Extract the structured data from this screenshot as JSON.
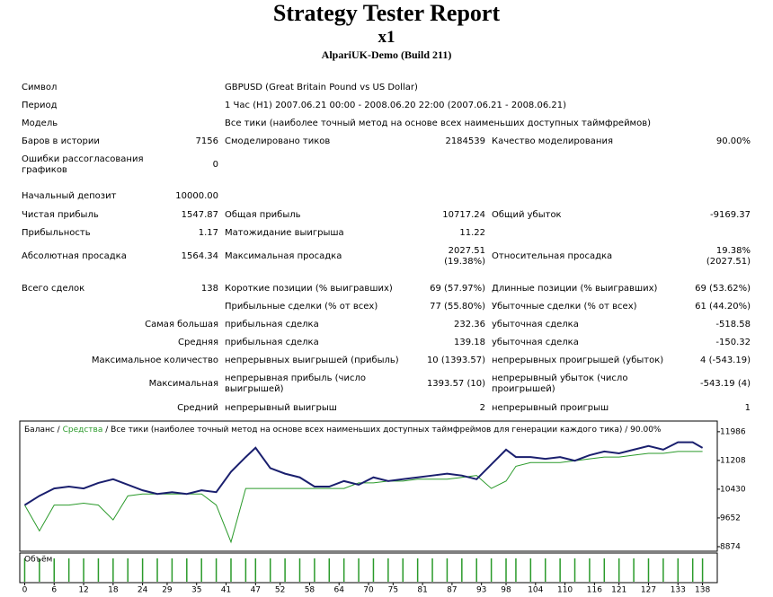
{
  "header": {
    "title": "Strategy Tester Report",
    "subtitle": "x1",
    "server": "AlpariUK-Demo (Build 211)"
  },
  "table": {
    "rows": [
      [
        "Символ",
        null,
        "GBPUSD (Great Britain Pound vs US Dollar)",
        null,
        null,
        null
      ],
      [
        "Период",
        null,
        "1 Час (H1) 2007.06.21 00:00 - 2008.06.20 22:00 (2007.06.21 - 2008.06.21)",
        null,
        null,
        null
      ],
      [
        "Модель",
        null,
        "Все тики (наиболее точный метод на основе всех наименьших доступных таймфреймов)",
        null,
        null,
        null
      ],
      [
        "Баров в истории",
        "7156",
        "Смоделировано тиков",
        "2184539",
        "Качество моделирования",
        "90.00%"
      ],
      [
        "Ошибки рассогласования графиков",
        "0",
        null,
        null,
        null,
        null
      ],
      [
        "Начальный депозит",
        "10000.00",
        null,
        null,
        null,
        null
      ],
      [
        "Чистая прибыль",
        "1547.87",
        "Общая прибыль",
        "10717.24",
        "Общий убыток",
        "-9169.37"
      ],
      [
        "Прибыльность",
        "1.17",
        "Матожидание выигрыша",
        "11.22",
        null,
        null
      ],
      [
        "Абсолютная просадка",
        "1564.34",
        "Максимальная просадка",
        "2027.51\n(19.38%)",
        "Относительная просадка",
        "19.38%\n(2027.51)"
      ],
      [
        "Всего сделок",
        "138",
        "Короткие позиции (% выигравших)",
        "69 (57.97%)",
        "Длинные позиции (% выигравших)",
        "69 (53.62%)"
      ],
      [
        null,
        null,
        "Прибыльные сделки (% от всех)",
        "77 (55.80%)",
        "Убыточные сделки (% от всех)",
        "61 (44.20%)"
      ],
      [
        null,
        "Самая большая",
        "прибыльная сделка",
        "232.36",
        "убыточная сделка",
        "-518.58"
      ],
      [
        null,
        "Средняя",
        "прибыльная сделка",
        "139.18",
        "убыточная сделка",
        "-150.32"
      ],
      [
        null,
        "Максимальное количество",
        "непрерывных выигрышей (прибыль)",
        "10 (1393.57)",
        "непрерывных проигрышей (убыток)",
        "4 (-543.19)"
      ],
      [
        null,
        "Максимальная",
        "непрерывная прибыль (число выигрышей)",
        "1393.57 (10)",
        "непрерывный убыток (число проигрышей)",
        "-543.19 (4)"
      ],
      [
        null,
        "Средний",
        "непрерывный выигрыш",
        "2",
        "непрерывный проигрыш",
        "1"
      ]
    ]
  },
  "chart_data": {
    "type": "line",
    "legend_separator": "/",
    "subtitle": "/ Все тики (наиболее точный метод на основе всех наименьших доступных таймфреймов для генерации каждого тика) / 90.00%",
    "x": [
      0,
      3,
      6,
      9,
      12,
      15,
      18,
      21,
      24,
      27,
      30,
      33,
      36,
      39,
      42,
      45,
      47,
      50,
      53,
      56,
      59,
      62,
      65,
      68,
      71,
      74,
      77,
      80,
      83,
      86,
      89,
      92,
      95,
      98,
      100,
      103,
      106,
      109,
      112,
      115,
      118,
      121,
      124,
      127,
      130,
      133,
      136,
      138
    ],
    "series": [
      {
        "name": "Баланс",
        "color": "#1a1f6e",
        "values": [
          10000,
          10250,
          10450,
          10500,
          10450,
          10600,
          10700,
          10550,
          10400,
          10300,
          10350,
          10300,
          10400,
          10350,
          10900,
          11300,
          11550,
          11000,
          10850,
          10750,
          10500,
          10500,
          10650,
          10550,
          10750,
          10650,
          10700,
          10750,
          10800,
          10850,
          10800,
          10700,
          11100,
          11500,
          11300,
          11300,
          11250,
          11300,
          11200,
          11350,
          11450,
          11400,
          11500,
          11600,
          11500,
          11700,
          11700,
          11547.87
        ]
      },
      {
        "name": "Средства",
        "color": "#2a9a2a",
        "values": [
          10000,
          9300,
          10000,
          10000,
          10050,
          10000,
          9600,
          10250,
          10300,
          10300,
          10300,
          10300,
          10300,
          10000,
          9000,
          10450,
          10450,
          10450,
          10450,
          10450,
          10450,
          10450,
          10450,
          10600,
          10600,
          10650,
          10650,
          10700,
          10700,
          10700,
          10750,
          10800,
          10450,
          10650,
          11050,
          11150,
          11150,
          11150,
          11200,
          11250,
          11300,
          11300,
          11350,
          11400,
          11400,
          11450,
          11450,
          11450
        ]
      }
    ],
    "volume": {
      "name": "Объём",
      "color": "#2a9a2a",
      "values": [
        0.1,
        0.1,
        0.1,
        0.1,
        0.1,
        0.1,
        0.1,
        0.1,
        0.1,
        0.1,
        0.1,
        0.1,
        0.1,
        0.1,
        0.1,
        0.1,
        0.1,
        0.1,
        0.1,
        0.1,
        0.1,
        0.1,
        0.1,
        0.1,
        0.1,
        0.1,
        0.1,
        0.1,
        0.1,
        0.1,
        0.1,
        0.1,
        0.1,
        0.1,
        0.1,
        0.1,
        0.1,
        0.1,
        0.1,
        0.1,
        0.1,
        0.1,
        0.1,
        0.1,
        0.1,
        0.1,
        0.1,
        0.1
      ]
    },
    "xlim": [
      -1,
      141
    ],
    "xticks": [
      0,
      6,
      12,
      18,
      24,
      29,
      35,
      41,
      47,
      52,
      58,
      64,
      70,
      75,
      81,
      87,
      93,
      98,
      104,
      110,
      116,
      121,
      127,
      133,
      138
    ],
    "ylim": [
      8800,
      12250
    ],
    "yticks": [
      8874,
      9652,
      10430,
      11208,
      11986
    ]
  }
}
